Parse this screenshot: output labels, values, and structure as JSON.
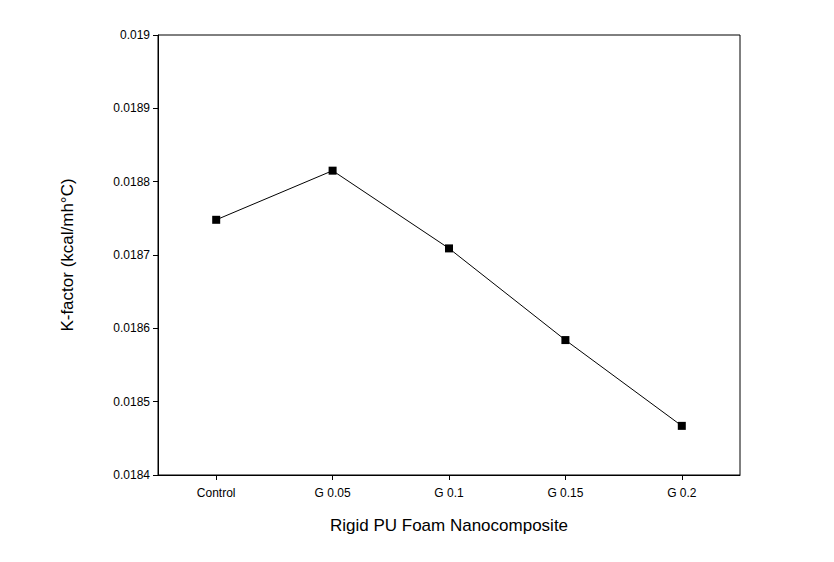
{
  "chart_data": {
    "type": "line",
    "x_label": "Rigid PU Foam Nanocomposite",
    "y_label": "K-factor (kcal/mh°C)",
    "categories": [
      "Control",
      "G 0.05",
      "G 0.1",
      "G 0.15",
      "G 0.2"
    ],
    "values": [
      0.018748,
      0.018815,
      0.018709,
      0.018584,
      0.018467
    ],
    "color": "#000000",
    "marker": "square",
    "ylim": [
      0.0184,
      0.019
    ],
    "yticks": [
      0.0184,
      0.0185,
      0.0186,
      0.0187,
      0.0188,
      0.0189,
      0.019
    ],
    "grid": false
  }
}
